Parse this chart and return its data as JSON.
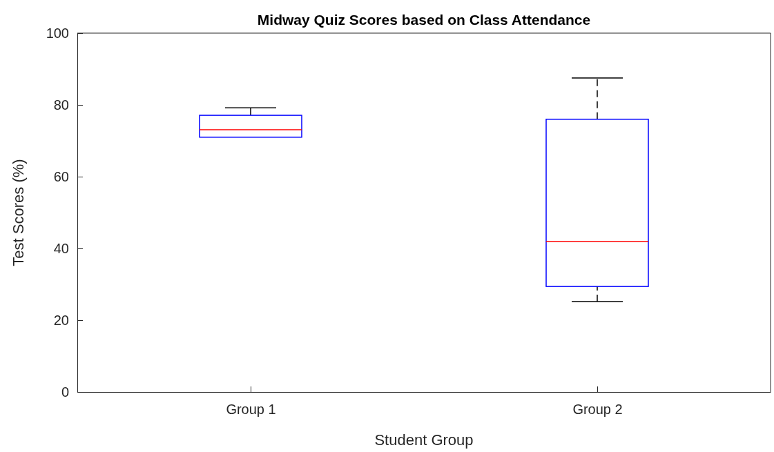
{
  "chart_data": {
    "type": "box",
    "title": "Midway Quiz Scores based on Class Attendance",
    "xlabel": "Student Group",
    "ylabel": "Test Scores (%)",
    "categories": [
      "Group 1",
      "Group 2"
    ],
    "boxes": [
      {
        "low": 71.0,
        "q1": 71.0,
        "median": 73.1,
        "q3": 77.1,
        "high": 79.2
      },
      {
        "low": 25.2,
        "q1": 29.4,
        "median": 41.9,
        "q3": 76.0,
        "high": 87.5
      }
    ],
    "color": "#0000ff",
    "ylim": [
      0,
      100
    ],
    "yticks": [
      0,
      20,
      40,
      60,
      80,
      100
    ],
    "grid": false,
    "line_style": "dashed"
  }
}
